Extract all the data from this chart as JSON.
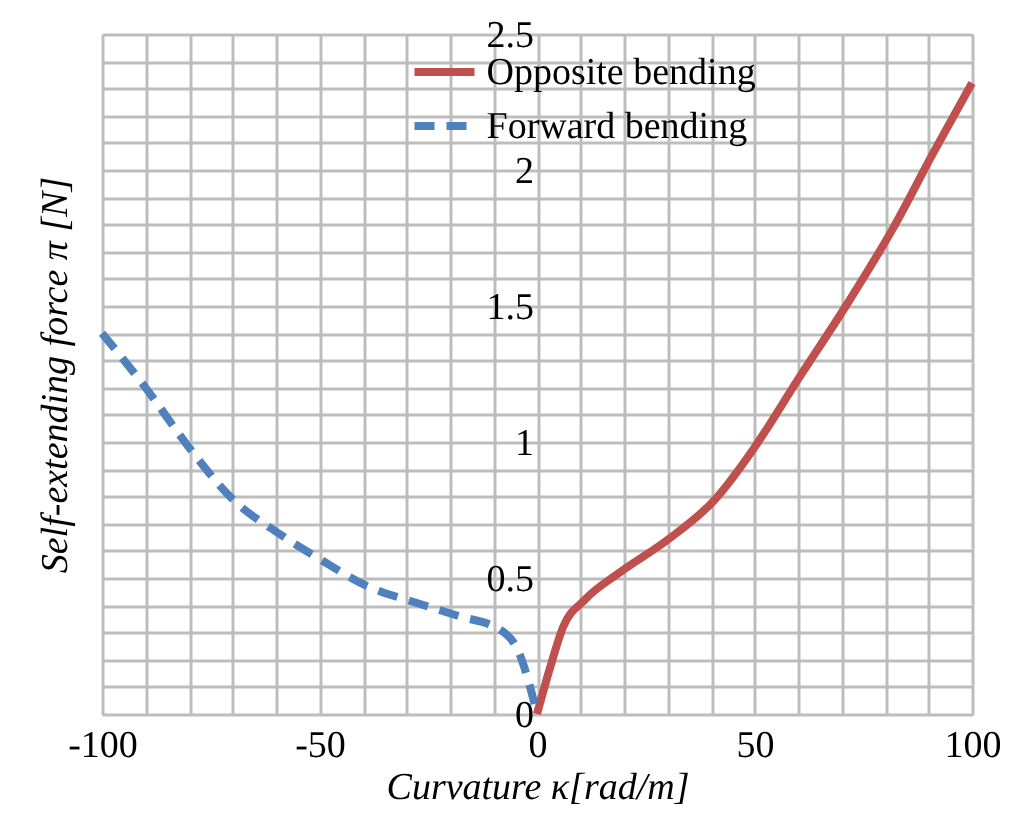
{
  "chart_data": {
    "type": "line",
    "xlabel": "Curvature κ[rad/m]",
    "ylabel": "Self-extending force  π [N]",
    "xlim": [
      -100,
      100
    ],
    "ylim": [
      0,
      2.5
    ],
    "xticks": [
      -100,
      {
        "value": -90,
        "label": null
      },
      {
        "value": -80,
        "label": null
      },
      {
        "value": -70,
        "label": null
      },
      {
        "value": -60,
        "label": null
      },
      -50,
      {
        "value": -40,
        "label": null
      },
      {
        "value": -30,
        "label": null
      },
      {
        "value": -20,
        "label": null
      },
      {
        "value": -10,
        "label": null
      },
      0,
      {
        "value": 10,
        "label": null
      },
      {
        "value": 20,
        "label": null
      },
      {
        "value": 30,
        "label": null
      },
      {
        "value": 40,
        "label": null
      },
      50,
      {
        "value": 60,
        "label": null
      },
      {
        "value": 70,
        "label": null
      },
      {
        "value": 80,
        "label": null
      },
      {
        "value": 90,
        "label": null
      },
      100
    ],
    "yticks": [
      0,
      {
        "value": 0.1,
        "label": null
      },
      {
        "value": 0.2,
        "label": null
      },
      {
        "value": 0.3,
        "label": null
      },
      {
        "value": 0.4,
        "label": null
      },
      0.5,
      {
        "value": 0.6,
        "label": null
      },
      {
        "value": 0.7,
        "label": null
      },
      {
        "value": 0.8,
        "label": null
      },
      {
        "value": 0.9,
        "label": null
      },
      1,
      {
        "value": 1.1,
        "label": null
      },
      {
        "value": 1.2,
        "label": null
      },
      {
        "value": 1.3,
        "label": null
      },
      {
        "value": 1.4,
        "label": null
      },
      1.5,
      {
        "value": 1.6,
        "label": null
      },
      {
        "value": 1.7,
        "label": null
      },
      {
        "value": 1.8,
        "label": null
      },
      {
        "value": 1.9,
        "label": null
      },
      2,
      {
        "value": 2.1,
        "label": null
      },
      {
        "value": 2.2,
        "label": null
      },
      {
        "value": 2.3,
        "label": null
      },
      {
        "value": 2.4,
        "label": null
      },
      2.5
    ],
    "grid": true,
    "legend": "top right",
    "marker": "none",
    "series": [
      {
        "name": "Opposite bending",
        "color": "#c0504d",
        "line_style": "solid",
        "x": [
          0,
          3,
          6,
          11,
          19,
          30,
          41,
          50,
          60,
          71,
          82,
          91,
          100
        ],
        "values": [
          0,
          0.17,
          0.32,
          0.42,
          0.52,
          0.64,
          0.79,
          0.98,
          1.23,
          1.5,
          1.79,
          2.06,
          2.32
        ]
      },
      {
        "name": "Forward bending",
        "color": "#4f81bd",
        "line_style": "dashed",
        "x": [
          -100,
          -90,
          -80,
          -70,
          -59,
          -50,
          -39,
          -28,
          -18,
          -8.5,
          -4,
          -1.6,
          0
        ],
        "values": [
          1.4,
          1.2,
          0.98,
          0.79,
          0.66,
          0.57,
          0.47,
          0.41,
          0.36,
          0.31,
          0.22,
          0.1,
          0
        ]
      }
    ]
  }
}
